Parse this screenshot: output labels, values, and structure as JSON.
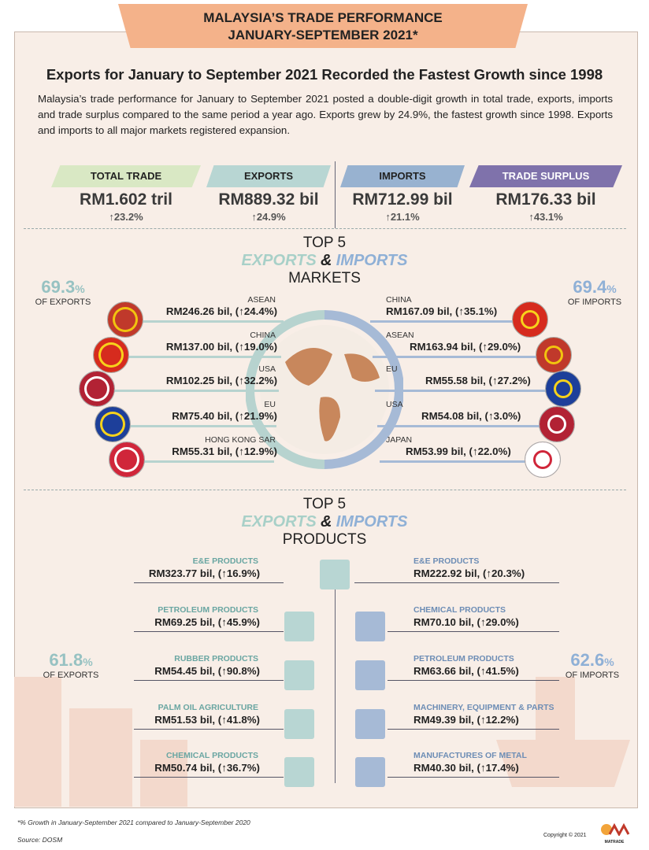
{
  "header": {
    "title": [
      "MALAYSIA’S TRADE PERFORMANCE",
      "JANUARY-SEPTEMBER 2021*"
    ]
  },
  "headline": "Exports for January to September 2021 Recorded the Fastest Growth since 1998",
  "intro": "Malaysia’s trade performance for January to September 2021 posted a double-digit growth in total trade, exports, imports and trade surplus compared to the same period a year ago. Exports grew by 24.9%, the fastest growth since 1998. Exports and imports to all major markets registered expansion.",
  "summary": [
    {
      "label": "TOTAL TRADE",
      "value": "RM1.602 tril",
      "growth": "↑23.2%"
    },
    {
      "label": "EXPORTS",
      "value": "RM889.32 bil",
      "growth": "↑24.9%"
    },
    {
      "label": "IMPORTS",
      "value": "RM712.99 bil",
      "growth": "↑21.1%"
    },
    {
      "label": "TRADE SURPLUS",
      "value": "RM176.33 bil",
      "growth": "↑43.1%"
    }
  ],
  "markets": {
    "title": {
      "top": "TOP 5",
      "exports": "EXPORTS",
      "amp": "&",
      "imports": "IMPORTS",
      "sub": "MARKETS"
    },
    "exports_share": {
      "value": "69.3",
      "unit": "%",
      "label": "OF EXPORTS"
    },
    "imports_share": {
      "value": "69.4",
      "unit": "%",
      "label": "OF IMPORTS"
    },
    "exports": [
      {
        "name": "ASEAN",
        "value": "RM246.26 bil, (↑24.4%)"
      },
      {
        "name": "CHINA",
        "value": "RM137.00 bil, (↑19.0%)"
      },
      {
        "name": "USA",
        "value": "RM102.25 bil, (↑32.2%)"
      },
      {
        "name": "EU",
        "value": "RM75.40 bil, (↑21.9%)"
      },
      {
        "name": "HONG KONG SAR",
        "value": "RM55.31 bil, (↑12.9%)"
      }
    ],
    "imports": [
      {
        "name": "CHINA",
        "value": "RM167.09 bil, (↑35.1%)"
      },
      {
        "name": "ASEAN",
        "value": "RM163.94 bil, (↑29.0%)"
      },
      {
        "name": "EU",
        "value": "RM55.58 bil, (↑27.2%)"
      },
      {
        "name": "USA",
        "value": "RM54.08 bil, (↑3.0%)"
      },
      {
        "name": "JAPAN",
        "value": "RM53.99 bil, (↑22.0%)"
      }
    ]
  },
  "products": {
    "title": {
      "top": "TOP 5",
      "exports": "EXPORTS",
      "amp": "&",
      "imports": "IMPORTS",
      "sub": "PRODUCTS"
    },
    "exports_share": {
      "value": "61.8",
      "unit": "%",
      "label": "OF EXPORTS"
    },
    "imports_share": {
      "value": "62.6",
      "unit": "%",
      "label": "OF IMPORTS"
    },
    "exports": [
      {
        "name": "E&E PRODUCTS",
        "value": "RM323.77 bil, (↑16.9%)"
      },
      {
        "name": "PETROLEUM PRODUCTS",
        "value": "RM69.25 bil, (↑45.9%)"
      },
      {
        "name": "RUBBER PRODUCTS",
        "value": "RM54.45 bil, (↑90.8%)"
      },
      {
        "name": "PALM OIL AGRICULTURE",
        "value": "RM51.53 bil, (↑41.8%)"
      },
      {
        "name": "CHEMICAL PRODUCTS",
        "value": "RM50.74 bil, (↑36.7%)"
      }
    ],
    "imports": [
      {
        "name": "E&E PRODUCTS",
        "value": "RM222.92 bil, (↑20.3%)"
      },
      {
        "name": "CHEMICAL PRODUCTS",
        "value": "RM70.10 bil, (↑29.0%)"
      },
      {
        "name": "PETROLEUM PRODUCTS",
        "value": "RM63.66 bil, (↑41.5%)"
      },
      {
        "name": "MACHINERY, EQUIPMENT & PARTS",
        "value": "RM49.39 bil, (↑12.2%)"
      },
      {
        "name": "MANUFACTURES OF METAL",
        "value": "RM40.30 bil, (↑17.4%)"
      }
    ]
  },
  "footer": {
    "note": "*% Growth in January-September 2021 compared to January-September 2020",
    "source": "Source: DOSM",
    "copyright": "Copyright © 2021",
    "logo": "MATRADE"
  }
}
